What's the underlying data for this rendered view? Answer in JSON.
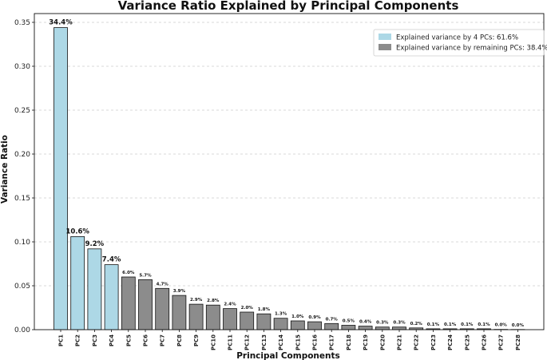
{
  "chart_data": {
    "type": "bar",
    "title": "Variance Ratio Explained by Principal Components",
    "xlabel": "Principal Components",
    "ylabel": "Variance Ratio",
    "ylim": [
      0,
      0.36
    ],
    "yticks": [
      0.0,
      0.05,
      0.1,
      0.15,
      0.2,
      0.25,
      0.3,
      0.35
    ],
    "grid": "horizontal-dashed",
    "legend_position": "top-right",
    "categories": [
      "PC1",
      "PC2",
      "PC3",
      "PC4",
      "PC5",
      "PC6",
      "PC7",
      "PC8",
      "PC9",
      "PC10",
      "PC11",
      "PC12",
      "PC13",
      "PC14",
      "PC15",
      "PC16",
      "PC17",
      "PC18",
      "PC19",
      "PC20",
      "PC21",
      "PC22",
      "PC23",
      "PC24",
      "PC25",
      "PC26",
      "PC27",
      "PC28"
    ],
    "values": [
      0.344,
      0.106,
      0.092,
      0.074,
      0.06,
      0.057,
      0.047,
      0.039,
      0.029,
      0.028,
      0.024,
      0.02,
      0.018,
      0.013,
      0.01,
      0.009,
      0.007,
      0.005,
      0.004,
      0.003,
      0.003,
      0.002,
      0.001,
      0.001,
      0.001,
      0.001,
      0.0003,
      0.0002
    ],
    "labels": [
      "34.4%",
      "10.6%",
      "9.2%",
      "7.4%",
      "6.0%",
      "5.7%",
      "4.7%",
      "3.9%",
      "2.9%",
      "2.8%",
      "2.4%",
      "2.0%",
      "1.8%",
      "1.3%",
      "1.0%",
      "0.9%",
      "0.7%",
      "0.5%",
      "0.4%",
      "0.3%",
      "0.3%",
      "0.2%",
      "0.1%",
      "0.1%",
      "0.1%",
      "0.1%",
      "0.0%",
      "0.0%"
    ],
    "highlight_count": 4,
    "colors": {
      "highlight": "#add8e6",
      "remaining": "#8c8c8c",
      "edge": "#111111",
      "grid": "#cccccc"
    },
    "legend": [
      {
        "label": "Explained variance by 4 PCs: 61.6%",
        "color": "#add8e6"
      },
      {
        "label": "Explained variance by remaining PCs: 38.4%",
        "color": "#8c8c8c"
      }
    ]
  }
}
